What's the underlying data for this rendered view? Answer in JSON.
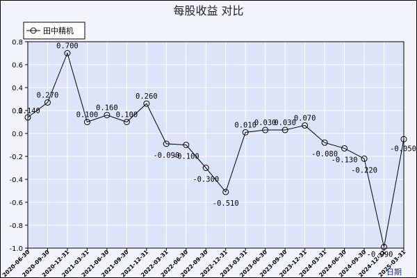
{
  "chart_data": {
    "type": "line",
    "title": "每股收益  对比",
    "x_unit_label": "日期",
    "legend_position": "top-left",
    "grid": true,
    "ylim": [
      -1.0,
      0.8
    ],
    "yticks": [
      "0.8",
      "0.6",
      "0.4",
      "0.2",
      "0.0",
      "-0.2",
      "-0.4",
      "-0.6",
      "-0.8",
      "-1.0"
    ],
    "ytick_values": [
      0.8,
      0.6,
      0.4,
      0.2,
      0.0,
      -0.2,
      -0.4,
      -0.6,
      -0.8,
      -1.0
    ],
    "categories": [
      "2020-06-30",
      "2020-09-30",
      "2020-12-31",
      "2021-03-31",
      "2021-06-30",
      "2021-09-30",
      "2021-12-31",
      "2022-03-31",
      "2022-06-30",
      "2022-09-30",
      "2022-12-31",
      "2023-03-31",
      "2023-06-30",
      "2023-09-30",
      "2023-12-31",
      "2024-03-31",
      "2024-06-30",
      "2024-09-30",
      "2024-12-31",
      "2025-03-31"
    ],
    "series": [
      {
        "name": "田中精机",
        "values": [
          0.14,
          0.27,
          0.7,
          0.1,
          0.16,
          0.1,
          0.26,
          -0.09,
          -0.1,
          -0.3,
          -0.51,
          0.01,
          0.03,
          0.03,
          0.07,
          -0.08,
          -0.13,
          -0.22,
          -0.99,
          -0.05
        ],
        "labels": [
          "0.140",
          "0.270",
          "0.700",
          "0.100",
          "0.160",
          "0.100",
          "0.260",
          "-0.090",
          "-0.100",
          "-0.300",
          "-0.510",
          "0.010",
          "0.030",
          "0.030",
          "0.070",
          "-0.080",
          "-0.130",
          "-0.220",
          "-0.990",
          "-0.050"
        ]
      }
    ],
    "colors": {
      "plot_bg": "#dde3f8",
      "grid": "#ffffff",
      "line": "#000000",
      "frame_bg": "#f3f3fb"
    }
  }
}
